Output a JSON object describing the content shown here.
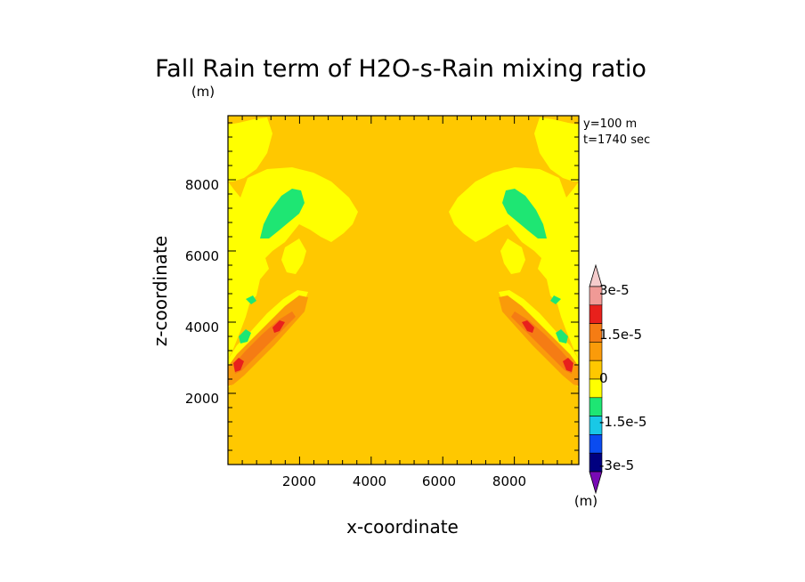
{
  "chart_data": {
    "type": "heatmap",
    "title": "Fall Rain term of H2O-s-Rain mixing ratio",
    "title_unit": "(m)",
    "xlabel": "x-coordinate",
    "ylabel": "z-coordinate",
    "xlim": [
      0,
      9800
    ],
    "ylim": [
      0,
      9800
    ],
    "x_ticks": [
      "2000",
      "4000",
      "6000",
      "8000"
    ],
    "y_ticks": [
      "2000",
      "4000",
      "6000",
      "8000"
    ],
    "annotations": [
      "y=100 m",
      "t=1740 sec"
    ],
    "colorbar": {
      "labels": [
        "3e-5",
        "1.5e-5",
        "0",
        "-1.5e-5",
        "-3e-5"
      ],
      "unit": "(m)",
      "colors": [
        "#f5cccc",
        "#f09a96",
        "#e8201c",
        "#f57c14",
        "#fa9b0a",
        "#ffc800",
        "#ffff00",
        "#1ee673",
        "#19c8e6",
        "#0a4bf0",
        "#000080",
        "#780ab4"
      ]
    },
    "field_regions": {
      "background": {
        "level": "0 to 2.5e-6",
        "color": "#ffc800"
      },
      "near_zero_negative": {
        "level": "-2.5e-6 to 0",
        "color": "#ffff00"
      },
      "negative": {
        "level": "-5e-6 to -2.5e-6",
        "color": "#1ee673"
      },
      "positive": {
        "level": "2.5e-6 to 5e-6",
        "color": "#fa9b0a"
      },
      "positive_high": {
        "level": "5e-6 to 7.5e-6",
        "color": "#f57c14"
      },
      "positive_peak": {
        "level": "7.5e-6 to 1e-5",
        "color": "#e8201c"
      }
    }
  }
}
